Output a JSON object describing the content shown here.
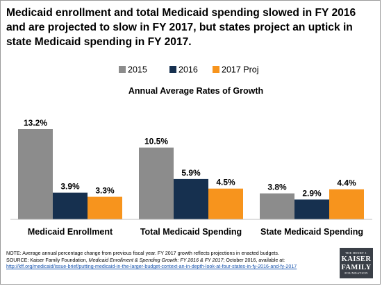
{
  "title": "Medicaid enrollment and total Medicaid spending slowed in FY 2016 and are projected to slow in FY 2017, but states project an uptick in state Medicaid spending in FY 2017.",
  "chart_data": {
    "type": "bar",
    "title": "Annual Average Rates of Growth",
    "categories": [
      "Medicaid Enrollment",
      "Total Medicaid Spending",
      "State Medicaid Spending"
    ],
    "series": [
      {
        "name": "2015",
        "color": "#8c8c8c",
        "values": [
          13.2,
          10.5,
          3.8
        ],
        "labels": [
          "13.2%",
          "10.5%",
          "3.8%"
        ]
      },
      {
        "name": "2016",
        "color": "#16304f",
        "values": [
          3.9,
          5.9,
          2.9
        ],
        "labels": [
          "3.9%",
          "5.9%",
          "2.9%"
        ]
      },
      {
        "name": "2017 Proj",
        "color": "#f7941d",
        "values": [
          3.3,
          4.5,
          4.4
        ],
        "labels": [
          "3.3%",
          "4.5%",
          "4.4%"
        ]
      }
    ],
    "ylim": [
      0,
      13.2
    ],
    "legend_position": "top-center",
    "grid": false
  },
  "footer": {
    "note": "NOTE: Average annual percentage change from previous fiscal year. FY 2017 growth reflects projections in enacted budgets.",
    "source_prefix": "SOURCE:  Kaiser Family Foundation, ",
    "source_title": "Medicaid Enrollment & Spending Growth: FY 2016 & FY 2017",
    "source_suffix": "; October 2016,  available at:",
    "url": "http://kff.org/medicaid/issue-brief/putting-medicaid-in-the-larger-budget-context-an-in-depth-look-at-four-states-in-fy-2016-and-fy-2017"
  },
  "logo": {
    "line1": "THE HENRY J.",
    "line2": "KAISER",
    "line3": "FAMILY",
    "line4": "FOUNDATION"
  }
}
